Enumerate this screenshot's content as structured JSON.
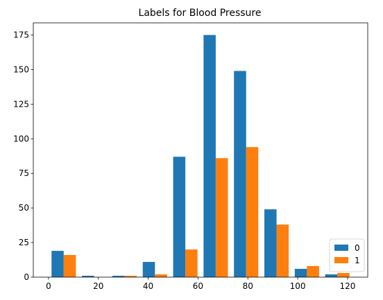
{
  "chart_data": {
    "type": "bar",
    "title": "Labels for Blood Pressure",
    "xlabel": "",
    "ylabel": "",
    "bin_edges": [
      0,
      12.2,
      24.4,
      36.6,
      48.8,
      61.0,
      73.2,
      85.4,
      97.6,
      109.8,
      122.0
    ],
    "series": [
      {
        "name": "0",
        "color": "#1f77b4",
        "values": [
          19,
          1,
          1,
          11,
          87,
          175,
          149,
          49,
          6,
          2
        ]
      },
      {
        "name": "1",
        "color": "#ff7f0e",
        "values": [
          16,
          0,
          1,
          2,
          20,
          86,
          94,
          38,
          8,
          3
        ]
      }
    ],
    "xlim": [
      -6.1,
      128.1
    ],
    "ylim": [
      0,
      183.75
    ],
    "x_ticks": [
      0,
      20,
      40,
      60,
      80,
      100,
      120
    ],
    "y_ticks": [
      0,
      25,
      50,
      75,
      100,
      125,
      150,
      175
    ],
    "legend_position": "lower-right",
    "grid": false
  }
}
